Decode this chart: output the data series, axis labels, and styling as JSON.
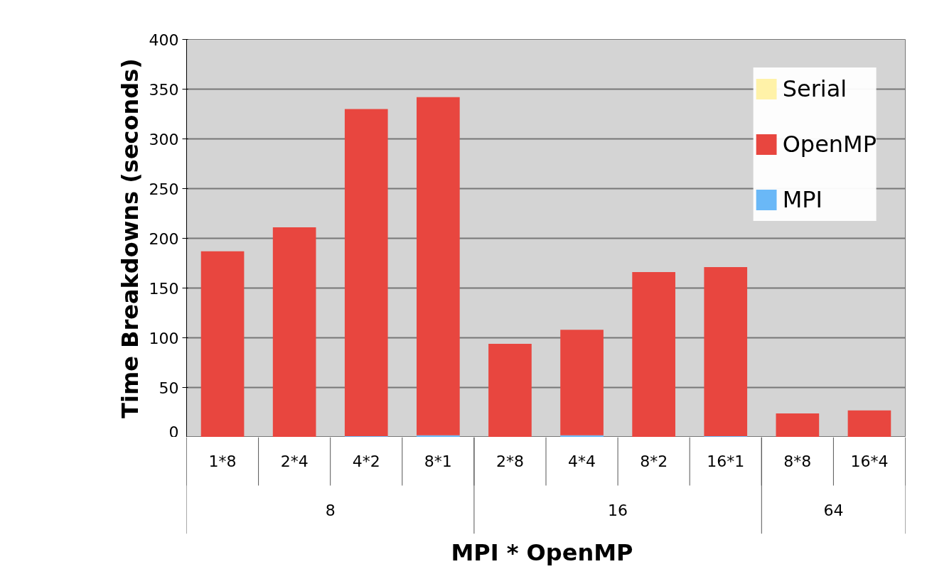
{
  "chart_data": {
    "type": "bar",
    "stacked": true,
    "xlabel": "MPI  * OpenMP",
    "ylabel": "Time Breakdowns (seconds)",
    "categories": [
      "1*8",
      "2*4",
      "4*2",
      "8*1",
      "2*8",
      "4*4",
      "8*2",
      "16*1",
      "8*8",
      "16*4"
    ],
    "series": [
      {
        "name": "MPI",
        "color": "#6ab8f7",
        "values": [
          0,
          0,
          1,
          2,
          0,
          2,
          0,
          1,
          0,
          0
        ]
      },
      {
        "name": "OpenMP",
        "color": "#e8463f",
        "values": [
          187,
          211,
          329,
          340,
          94,
          106,
          166,
          170,
          24,
          27
        ]
      },
      {
        "name": "Serial",
        "color": "#fff2a8",
        "values": [
          0,
          0,
          0,
          0,
          0,
          0,
          0,
          0,
          0,
          0
        ]
      }
    ],
    "ylim": [
      0,
      400
    ],
    "yticks": [
      0,
      50,
      100,
      150,
      200,
      250,
      300,
      350,
      400
    ],
    "grid": "y",
    "legend": "top right",
    "annotations": [
      "8",
      "16",
      "64"
    ]
  }
}
